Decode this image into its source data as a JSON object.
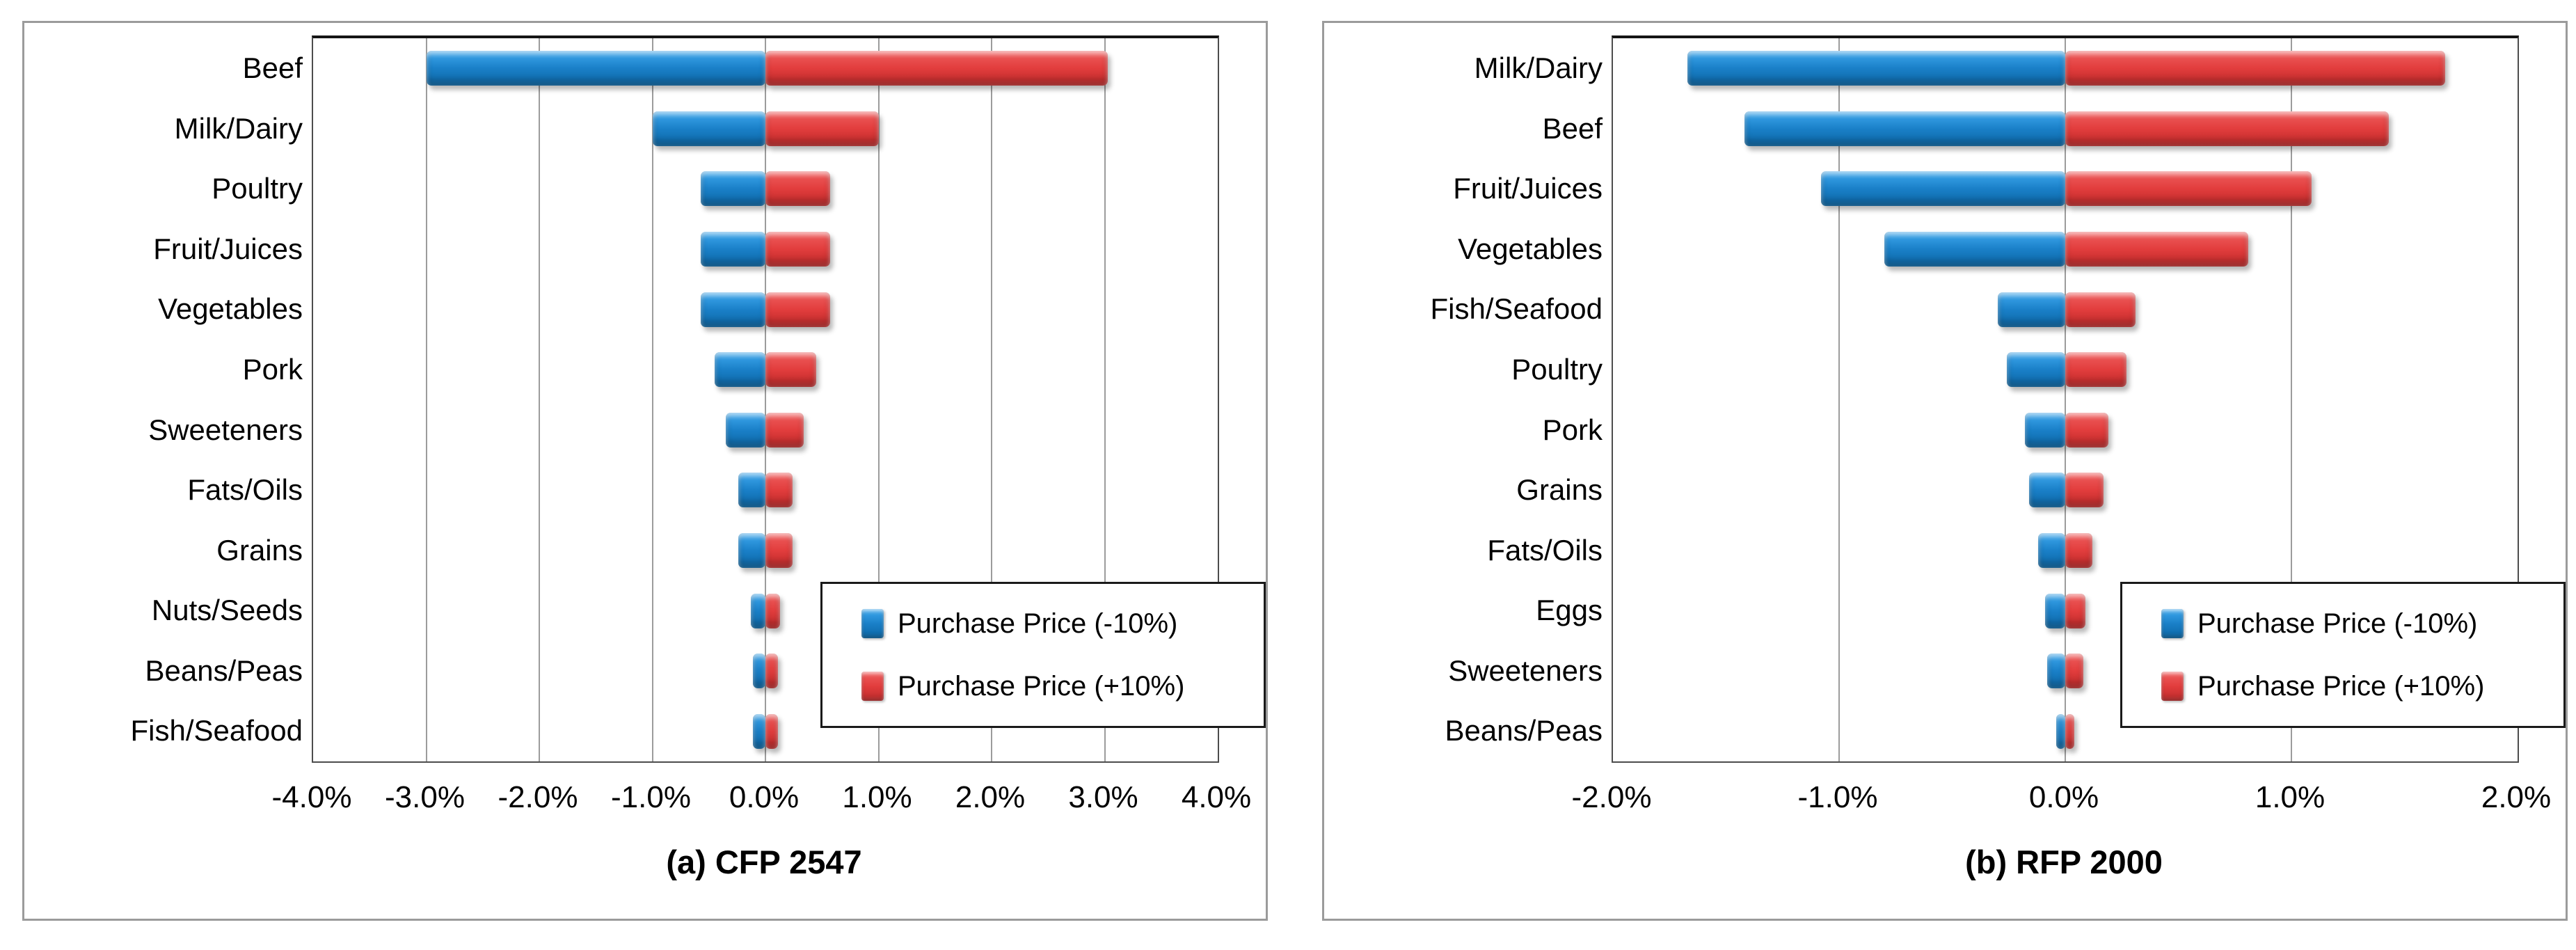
{
  "page": {
    "background": "#ffffff"
  },
  "colors": {
    "negative_bar": "#1a80c8",
    "positive_bar": "#e23d3d",
    "gridline": "#9c9c9c",
    "panel_border": "#9b9b9b",
    "plot_border": "#4d4d4d",
    "plot_border_top": "#151515",
    "legend_border": "#1a1a1a",
    "text": "#000000"
  },
  "legend": {
    "items": [
      {
        "label": "Purchase Price (-10%)",
        "series": "negative"
      },
      {
        "label": "Purchase Price (+10%)",
        "series": "positive"
      }
    ]
  },
  "chart_data": [
    {
      "type": "bar",
      "orientation": "horizontal-tornado",
      "title": "(a) CFP 2547",
      "categories": [
        "Beef",
        "Milk/Dairy",
        "Poultry",
        "Fruit/Juices",
        "Vegetables",
        "Pork",
        "Sweeteners",
        "Fats/Oils",
        "Grains",
        "Nuts/Seeds",
        "Beans/Peas",
        "Fish/Seafood"
      ],
      "series": [
        {
          "name": "Purchase Price (-10%)",
          "values": [
            -3.0,
            -1.0,
            -0.57,
            -0.57,
            -0.57,
            -0.45,
            -0.35,
            -0.24,
            -0.24,
            -0.13,
            -0.11,
            -0.11
          ]
        },
        {
          "name": "Purchase Price (+10%)",
          "values": [
            3.03,
            1.0,
            0.57,
            0.57,
            0.57,
            0.45,
            0.34,
            0.24,
            0.24,
            0.13,
            0.11,
            0.11
          ]
        }
      ],
      "xlim": [
        -4,
        4
      ],
      "xtick_values": [
        -4,
        -3,
        -2,
        -1,
        0,
        1,
        2,
        3,
        4
      ],
      "xticks": [
        "-4.0%",
        "-3.0%",
        "-2.0%",
        "-1.0%",
        "0.0%",
        "1.0%",
        "2.0%",
        "3.0%",
        "4.0%"
      ],
      "grid": true,
      "legend_position": "inside-bottom-right"
    },
    {
      "type": "bar",
      "orientation": "horizontal-tornado",
      "title": "(b) RFP 2000",
      "categories": [
        "Milk/Dairy",
        "Beef",
        "Fruit/Juices",
        "Vegetables",
        "Fish/Seafood",
        "Poultry",
        "Pork",
        "Grains",
        "Fats/Oils",
        "Eggs",
        "Sweeteners",
        "Beans/Peas"
      ],
      "series": [
        {
          "name": "Purchase Price (-10%)",
          "values": [
            -1.67,
            -1.42,
            -1.08,
            -0.8,
            -0.3,
            -0.26,
            -0.18,
            -0.16,
            -0.12,
            -0.09,
            -0.08,
            -0.04
          ]
        },
        {
          "name": "Purchase Price (+10%)",
          "values": [
            1.68,
            1.43,
            1.09,
            0.81,
            0.31,
            0.27,
            0.19,
            0.17,
            0.12,
            0.09,
            0.08,
            0.04
          ]
        }
      ],
      "xlim": [
        -2,
        2
      ],
      "xtick_values": [
        -2,
        -1,
        0,
        1,
        2
      ],
      "xticks": [
        "-2.0%",
        "-1.0%",
        "0.0%",
        "1.0%",
        "2.0%"
      ],
      "grid": true,
      "legend_position": "inside-bottom-right"
    }
  ]
}
